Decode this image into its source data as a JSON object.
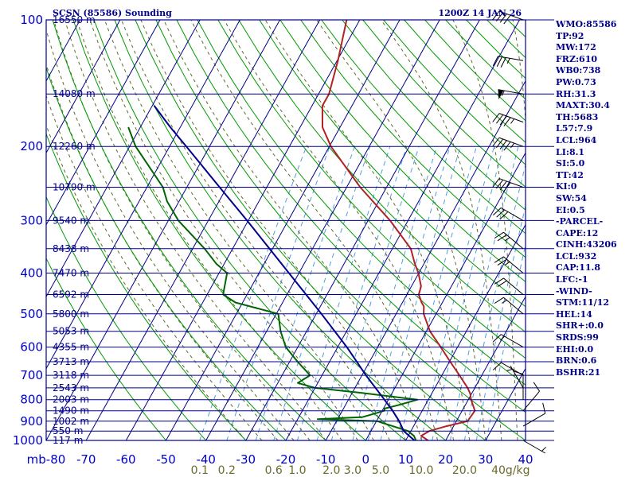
{
  "chart_data": {
    "type": "line",
    "title_left": "SCSN (85586) Sounding",
    "title_right": "1200Z 14 JAN 26",
    "x_unit": "C",
    "y_unit": "mb",
    "xlim": [
      -80,
      40
    ],
    "skew_deg_per_decade": 58.5,
    "pressure_ticks": [
      100,
      200,
      300,
      400,
      500,
      600,
      700,
      800,
      900,
      1000
    ],
    "pressure_labels": [
      "100",
      "200",
      "300",
      "400",
      "500",
      "600",
      "700",
      "800",
      "900",
      "1000"
    ],
    "temp_ticks": [
      -80,
      -70,
      -60,
      -50,
      -40,
      -30,
      -20,
      -10,
      0,
      10,
      20,
      30,
      40
    ],
    "temp_labels": [
      "mb-80",
      "-70",
      "-60",
      "-50",
      "-40",
      "-30",
      "-20",
      "-10",
      "0",
      "10",
      "20",
      "30",
      "40"
    ],
    "heights": [
      {
        "p": 100,
        "label": "16550 m"
      },
      {
        "p": 150,
        "label": "14080 m"
      },
      {
        "p": 200,
        "label": "12260 m"
      },
      {
        "p": 250,
        "label": "10790 m"
      },
      {
        "p": 300,
        "label": "9540 m"
      },
      {
        "p": 350,
        "label": "8438 m"
      },
      {
        "p": 400,
        "label": "7470 m"
      },
      {
        "p": 450,
        "label": "6592 m"
      },
      {
        "p": 500,
        "label": "5800 m"
      },
      {
        "p": 550,
        "label": "5053 m"
      },
      {
        "p": 600,
        "label": "4355 m"
      },
      {
        "p": 650,
        "label": "3713 m"
      },
      {
        "p": 700,
        "label": "3118 m"
      },
      {
        "p": 750,
        "label": "2543 m"
      },
      {
        "p": 800,
        "label": "2003 m"
      },
      {
        "p": 850,
        "label": "1490 m"
      },
      {
        "p": 900,
        "label": "1002 m"
      },
      {
        "p": 950,
        "label": "550 m"
      },
      {
        "p": 1000,
        "label": "117 m"
      }
    ],
    "mixing_ratio_labels": [
      {
        "w": 0.1,
        "label": "0.1"
      },
      {
        "w": 0.2,
        "label": "0.2"
      },
      {
        "w": 0.6,
        "label": "0.6"
      },
      {
        "w": 1.0,
        "label": "1.0"
      },
      {
        "w": 2.0,
        "label": "2.0"
      },
      {
        "w": 3.0,
        "label": "3.0"
      },
      {
        "w": 5.0,
        "label": "5.0"
      },
      {
        "w": 10.0,
        "label": "10.0"
      },
      {
        "w": 20.0,
        "label": "20.0"
      },
      {
        "w": 40.0,
        "label": "40g/kg"
      }
    ],
    "series": [
      {
        "role": "temperature",
        "color": "#b22222",
        "points": [
          [
            1000,
            15.6
          ],
          [
            975,
            13.2
          ],
          [
            950,
            14.6
          ],
          [
            925,
            18.2
          ],
          [
            900,
            22.8
          ],
          [
            850,
            23.2
          ],
          [
            800,
            20.7
          ],
          [
            775,
            19.7
          ],
          [
            750,
            18.2
          ],
          [
            700,
            14.4
          ],
          [
            650,
            10.2
          ],
          [
            600,
            5.8
          ],
          [
            550,
            0.9
          ],
          [
            500,
            -3.1
          ],
          [
            480,
            -4.1
          ],
          [
            470,
            -5.2
          ],
          [
            450,
            -7.0
          ],
          [
            430,
            -7.6
          ],
          [
            400,
            -10.1
          ],
          [
            380,
            -12.3
          ],
          [
            350,
            -15.4
          ],
          [
            300,
            -24.5
          ],
          [
            250,
            -36.6
          ],
          [
            200,
            -49.6
          ],
          [
            180,
            -54.4
          ],
          [
            160,
            -57.4
          ],
          [
            150,
            -57.4
          ],
          [
            125,
            -59.8
          ],
          [
            100,
            -63.3
          ]
        ]
      },
      {
        "role": "dewpoint",
        "color": "#006400",
        "points": [
          [
            1000,
            12.6
          ],
          [
            975,
            11.4
          ],
          [
            950,
            9.3
          ],
          [
            925,
            4.8
          ],
          [
            900,
            0.2
          ],
          [
            890,
            -15.0
          ],
          [
            880,
            -4.0
          ],
          [
            850,
            0.5
          ],
          [
            840,
            0.3
          ],
          [
            825,
            3.1
          ],
          [
            800,
            7.3
          ],
          [
            770,
            -8.0
          ],
          [
            750,
            -20.0
          ],
          [
            730,
            -25.0
          ],
          [
            700,
            -23.0
          ],
          [
            650,
            -28.0
          ],
          [
            600,
            -33.0
          ],
          [
            550,
            -36.5
          ],
          [
            500,
            -39.5
          ],
          [
            470,
            -51.8
          ],
          [
            450,
            -56.0
          ],
          [
            400,
            -58.0
          ],
          [
            380,
            -62.0
          ],
          [
            350,
            -67.0
          ],
          [
            300,
            -77.5
          ],
          [
            270,
            -83.0
          ],
          [
            250,
            -86.0
          ],
          [
            200,
            -98.5
          ],
          [
            180,
            -103.0
          ]
        ]
      },
      {
        "role": "parcel",
        "color": "#00008b",
        "points": [
          [
            1000,
            12.2
          ],
          [
            950,
            8.2
          ],
          [
            900,
            5.7
          ],
          [
            850,
            2.6
          ],
          [
            800,
            -1.0
          ],
          [
            700,
            -9.0
          ],
          [
            600,
            -17.7
          ],
          [
            500,
            -28.7
          ],
          [
            400,
            -42.5
          ],
          [
            300,
            -60.3
          ],
          [
            250,
            -71.8
          ],
          [
            200,
            -85.8
          ],
          [
            180,
            -92.5
          ],
          [
            160,
            -99.5
          ]
        ]
      }
    ],
    "winds": [
      {
        "p": 1000,
        "dir": 120,
        "spd": 5
      },
      {
        "p": 925,
        "dir": 60,
        "spd": 10
      },
      {
        "p": 850,
        "dir": 40,
        "spd": 10
      },
      {
        "p": 800,
        "dir": 0,
        "spd": 10
      },
      {
        "p": 750,
        "dir": 330,
        "spd": 5
      },
      {
        "p": 700,
        "dir": 300,
        "spd": 10
      },
      {
        "p": 600,
        "dir": 300,
        "spd": 15
      },
      {
        "p": 500,
        "dir": 310,
        "spd": 15
      },
      {
        "p": 450,
        "dir": 310,
        "spd": 20
      },
      {
        "p": 400,
        "dir": 310,
        "spd": 25
      },
      {
        "p": 350,
        "dir": 310,
        "spd": 25
      },
      {
        "p": 300,
        "dir": 300,
        "spd": 30
      },
      {
        "p": 250,
        "dir": 290,
        "spd": 40
      },
      {
        "p": 200,
        "dir": 290,
        "spd": 45
      },
      {
        "p": 175,
        "dir": 290,
        "spd": 45
      },
      {
        "p": 150,
        "dir": 280,
        "spd": 55
      },
      {
        "p": 125,
        "dir": 280,
        "spd": 35
      },
      {
        "p": 100,
        "dir": 290,
        "spd": 40
      }
    ],
    "colors": {
      "isobar": "#00008b",
      "isotherm": "#00008b",
      "dry_adiabat": "#009a00",
      "moist_adiabat": "#5f6a2a",
      "mixing_ratio": "#4f9fe0",
      "barb": "#000000"
    }
  },
  "indices": [
    "WMO:85586",
    "TP:92",
    "MW:172",
    "FRZ:610",
    "WB0:738",
    "PW:0.73",
    "RH:31.3",
    "MAXT:30.4",
    "TH:5683",
    "L57:7.9",
    "LCL:964",
    "LI:8.1",
    "SI:5.0",
    "TT:42",
    "KI:0",
    "SW:54",
    "EI:0.5",
    "-PARCEL-",
    "CAPE:12",
    "CINH:43206",
    "LCL:932",
    "CAP:11.8",
    "LFC:-1",
    "-WIND-",
    "STM:11/12",
    "HEL:14",
    "SHR+:0.0",
    "SRDS:99",
    "EHI:0.0",
    "BRN:0.6",
    "BSHR:21"
  ]
}
